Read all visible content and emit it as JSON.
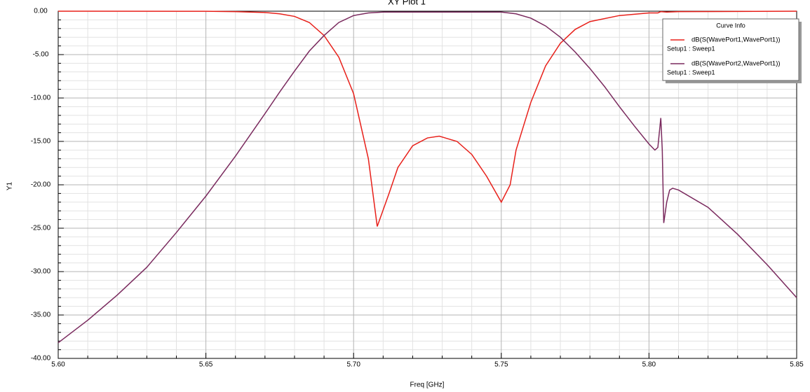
{
  "chart_data": {
    "type": "line",
    "title": "XY Plot 1",
    "xlabel": "Freq [GHz]",
    "ylabel": "Y1",
    "xlim": [
      5.6,
      5.85
    ],
    "xticks": [
      {
        "value": 5.6,
        "label": "5.60"
      },
      {
        "value": 5.65,
        "label": "5.65"
      },
      {
        "value": 5.7,
        "label": "5.70"
      },
      {
        "value": 5.75,
        "label": "5.75"
      },
      {
        "value": 5.8,
        "label": "5.80"
      },
      {
        "value": 5.85,
        "label": "5.85"
      }
    ],
    "xminorticks": [
      5.61,
      5.62,
      5.63,
      5.64,
      5.66,
      5.67,
      5.68,
      5.69,
      5.71,
      5.72,
      5.73,
      5.74,
      5.76,
      5.77,
      5.78,
      5.79,
      5.81,
      5.82,
      5.83,
      5.84
    ],
    "ylim": [
      -40,
      0
    ],
    "yticks": [
      {
        "value": -40,
        "label": "-40.00"
      },
      {
        "value": -35,
        "label": "-35.00"
      },
      {
        "value": -30,
        "label": "-30.00"
      },
      {
        "value": -25,
        "label": "-25.00"
      },
      {
        "value": -20,
        "label": "-20.00"
      },
      {
        "value": -15,
        "label": "-15.00"
      },
      {
        "value": -10,
        "label": "-10.00"
      },
      {
        "value": -5,
        "label": "-5.00"
      },
      {
        "value": 0,
        "label": "0.00"
      }
    ],
    "yminorticks": [
      -39,
      -38,
      -37,
      -36,
      -34,
      -33,
      -32,
      -31,
      -29,
      -28,
      -27,
      -26,
      -24,
      -23,
      -22,
      -21,
      -19,
      -18,
      -17,
      -16,
      -14,
      -13,
      -12,
      -11,
      -9,
      -8,
      -7,
      -6,
      -4,
      -3,
      -2,
      -1
    ],
    "grid": true,
    "legend_title": "Curve Info",
    "series": [
      {
        "name": "dB(S(WavePort1,WavePort1))",
        "solution": "Setup1 : Sweep1",
        "color": "#e8201a",
        "x": [
          5.6,
          5.65,
          5.66,
          5.67,
          5.675,
          5.68,
          5.685,
          5.69,
          5.695,
          5.7,
          5.705,
          5.708,
          5.712,
          5.715,
          5.72,
          5.725,
          5.729,
          5.735,
          5.74,
          5.745,
          5.75,
          5.753,
          5.755,
          5.76,
          5.765,
          5.77,
          5.775,
          5.78,
          5.79,
          5.8,
          5.803,
          5.804,
          5.806,
          5.81,
          5.85
        ],
        "values": [
          0,
          -0.01,
          -0.05,
          -0.15,
          -0.3,
          -0.6,
          -1.3,
          -2.8,
          -5.3,
          -9.5,
          -17,
          -24.8,
          -21,
          -18,
          -15.5,
          -14.6,
          -14.4,
          -15,
          -16.5,
          -19,
          -22,
          -20,
          -16,
          -10.5,
          -6.3,
          -3.7,
          -2.1,
          -1.2,
          -0.5,
          -0.2,
          -0.2,
          -0.05,
          -0.1,
          -0.05,
          0
        ]
      },
      {
        "name": "dB(S(WavePort2,WavePort1))",
        "solution": "Setup1 : Sweep1",
        "color": "#7a2a5e",
        "x": [
          5.6,
          5.61,
          5.62,
          5.63,
          5.64,
          5.65,
          5.66,
          5.67,
          5.675,
          5.68,
          5.685,
          5.69,
          5.695,
          5.7,
          5.705,
          5.71,
          5.75,
          5.755,
          5.76,
          5.765,
          5.77,
          5.775,
          5.78,
          5.785,
          5.79,
          5.795,
          5.8,
          5.802,
          5.803,
          5.8035,
          5.804,
          5.8045,
          5.805,
          5.806,
          5.807,
          5.808,
          5.81,
          5.82,
          5.83,
          5.84,
          5.85
        ],
        "values": [
          -38.2,
          -35.6,
          -32.7,
          -29.5,
          -25.5,
          -21.3,
          -16.7,
          -11.8,
          -9.3,
          -6.9,
          -4.6,
          -2.8,
          -1.3,
          -0.5,
          -0.2,
          -0.1,
          -0.1,
          -0.3,
          -0.8,
          -1.7,
          -3.0,
          -4.7,
          -6.6,
          -8.7,
          -11.0,
          -13.2,
          -15.3,
          -16.0,
          -15.7,
          -14,
          -12.3,
          -16,
          -24.4,
          -22,
          -20.6,
          -20.4,
          -20.6,
          -22.6,
          -25.7,
          -29.2,
          -33.0
        ]
      }
    ]
  }
}
